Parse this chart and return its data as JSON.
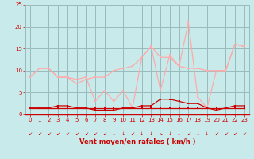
{
  "x": [
    0,
    1,
    2,
    3,
    4,
    5,
    6,
    7,
    8,
    9,
    10,
    11,
    12,
    13,
    14,
    15,
    16,
    17,
    18,
    19,
    20,
    21,
    22,
    23
  ],
  "series_flat": [
    1.5,
    1.5,
    1.5,
    1.5,
    1.5,
    1.5,
    1.5,
    1.5,
    1.5,
    1.5,
    1.5,
    1.5,
    1.5,
    1.5,
    1.5,
    1.5,
    1.5,
    1.5,
    1.5,
    1.5,
    1.5,
    1.5,
    1.5,
    1.5
  ],
  "series_low": [
    1.5,
    1.5,
    1.5,
    2.0,
    2.0,
    1.5,
    1.5,
    1.0,
    1.0,
    1.0,
    1.5,
    1.5,
    2.0,
    2.0,
    3.5,
    3.5,
    3.0,
    2.5,
    2.5,
    1.5,
    1.0,
    1.5,
    2.0,
    2.0
  ],
  "series_smooth": [
    8.5,
    10.5,
    10.5,
    8.5,
    8.5,
    7.0,
    8.0,
    8.5,
    8.5,
    10.0,
    10.5,
    11.0,
    13.0,
    15.5,
    13.0,
    13.0,
    11.0,
    10.5,
    10.5,
    10.0,
    10.0,
    10.0,
    16.0,
    15.5
  ],
  "series_spiky": [
    8.5,
    10.5,
    10.5,
    8.5,
    8.5,
    8.0,
    8.5,
    3.0,
    5.5,
    3.0,
    5.5,
    1.5,
    13.0,
    15.5,
    5.5,
    13.5,
    11.0,
    21.0,
    4.0,
    1.5,
    10.0,
    10.0,
    16.0,
    15.5
  ],
  "arrows": [
    "sw",
    "sw",
    "sw",
    "sw",
    "sw",
    "sw",
    "sw",
    "sw",
    "sw",
    "s",
    "s",
    "sw",
    "s",
    "s",
    "se",
    "s",
    "s",
    "sw",
    "s",
    "s",
    "sw",
    "sw",
    "sw",
    "sw"
  ],
  "color_dark_red": "#cc0000",
  "color_light_pink": "#ffaaaa",
  "background": "#c8eaea",
  "grid_color": "#99bbbb",
  "xlabel": "Vent moyen/en rafales ( km/h )",
  "ylim": [
    0,
    25
  ],
  "xlim": [
    -0.5,
    23.5
  ],
  "yticks": [
    0,
    5,
    10,
    15,
    20,
    25
  ],
  "xticks": [
    0,
    1,
    2,
    3,
    4,
    5,
    6,
    7,
    8,
    9,
    10,
    11,
    12,
    13,
    14,
    15,
    16,
    17,
    18,
    19,
    20,
    21,
    22,
    23
  ]
}
